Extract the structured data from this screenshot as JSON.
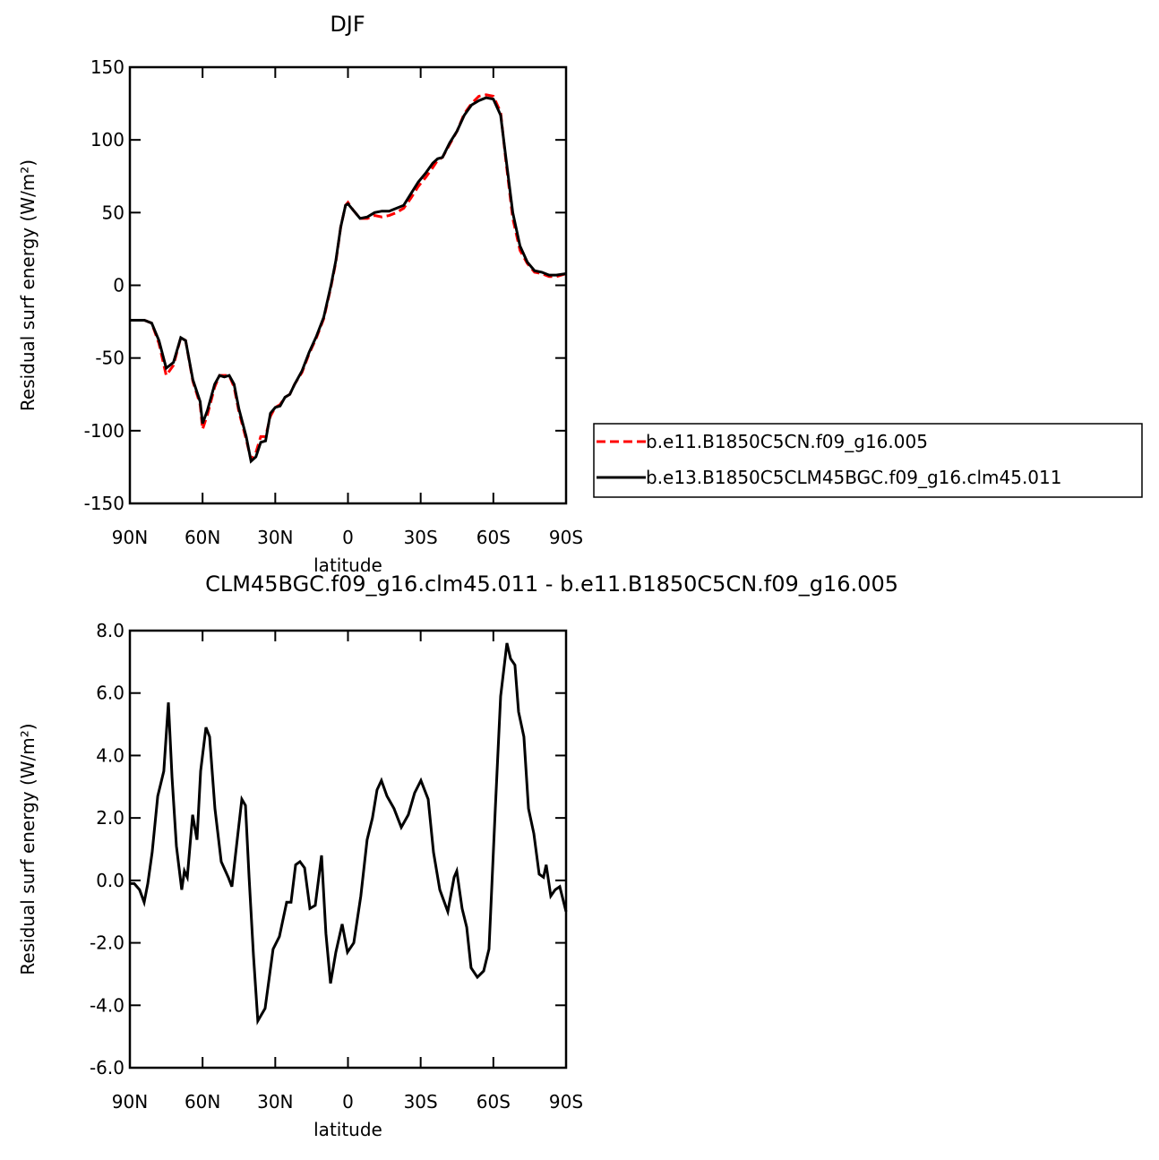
{
  "chart_data": [
    {
      "type": "line",
      "title": "DJF",
      "xlabel": "latitude",
      "ylabel": "Residual surf energy (W/m²)",
      "xlim": [
        90,
        -90
      ],
      "ylim": [
        -150,
        150
      ],
      "xticks": [
        {
          "value": 90,
          "label": "90N"
        },
        {
          "value": 60,
          "label": "60N"
        },
        {
          "value": 30,
          "label": "30N"
        },
        0,
        {
          "value": -30,
          "label": "30S"
        },
        {
          "value": -60,
          "label": "60S"
        },
        {
          "value": -90,
          "label": "90S"
        }
      ],
      "yticks": [
        -150,
        -100,
        -50,
        0,
        50,
        100,
        150
      ],
      "legend": "right",
      "x": [
        90,
        87,
        84,
        81,
        78,
        75,
        72,
        69,
        67,
        64,
        61,
        60,
        58,
        55,
        53,
        51,
        49,
        47,
        45,
        42,
        40,
        38,
        36,
        34,
        32,
        30,
        28,
        26,
        24,
        22,
        19,
        16,
        13,
        10,
        7,
        5,
        3,
        1,
        0,
        -2,
        -5,
        -8,
        -11,
        -14,
        -17,
        -20,
        -23,
        -26,
        -29,
        -32,
        -35,
        -37,
        -39,
        -42,
        -45,
        -48,
        -51,
        -54,
        -57,
        -60,
        -63,
        -65,
        -68,
        -71,
        -74,
        -77,
        -80,
        -83,
        -86,
        -90
      ],
      "series": [
        {
          "name": "b.e11.B1850C5CN.f09_g16.005",
          "color": "#ff0000",
          "dash": true,
          "values": [
            -24,
            -24,
            -24,
            -26,
            -40,
            -62,
            -55,
            -36,
            -38,
            -66,
            -82,
            -99,
            -89,
            -70,
            -62,
            -62,
            -62,
            -70,
            -87,
            -106,
            -120,
            -115,
            -104,
            -104,
            -90,
            -84,
            -82,
            -77,
            -75,
            -68,
            -60,
            -47,
            -36,
            -23,
            -1,
            16,
            40,
            55,
            57,
            52,
            46,
            46,
            48,
            47,
            48,
            50,
            53,
            60,
            68,
            74,
            81,
            86,
            88,
            97,
            106,
            118,
            125,
            130,
            131,
            130,
            119,
            88,
            46,
            24,
            15,
            9,
            8,
            6,
            6,
            8
          ]
        },
        {
          "name": "b.e13.B1850C5CLM45BGC.f09_g16.clm45.011",
          "color": "#000000",
          "dash": false,
          "values": [
            -24,
            -24,
            -24,
            -26,
            -38,
            -57,
            -53,
            -36,
            -38,
            -65,
            -80,
            -95,
            -86,
            -68,
            -62,
            -63,
            -62,
            -68,
            -85,
            -104,
            -121,
            -118,
            -108,
            -107,
            -88,
            -84,
            -83,
            -77,
            -75,
            -68,
            -59,
            -46,
            -35,
            -22,
            0,
            17,
            40,
            55,
            56,
            52,
            46,
            47,
            50,
            51,
            51,
            53,
            55,
            63,
            71,
            77,
            84,
            87,
            88,
            98,
            106,
            117,
            124,
            127,
            129,
            128,
            117,
            90,
            50,
            27,
            16,
            10,
            9,
            7,
            7,
            8
          ]
        }
      ]
    },
    {
      "type": "line",
      "title": "CLM45BGC.f09_g16.clm45.011 - b.e11.B1850C5CN.f09_g16.005",
      "xlabel": "latitude",
      "ylabel": "Residual surf energy (W/m²)",
      "xlim": [
        90,
        -90
      ],
      "ylim": [
        -6,
        8
      ],
      "xticks": [
        {
          "value": 90,
          "label": "90N"
        },
        {
          "value": 60,
          "label": "60N"
        },
        {
          "value": 30,
          "label": "30N"
        },
        0,
        {
          "value": -30,
          "label": "30S"
        },
        {
          "value": -60,
          "label": "60S"
        },
        {
          "value": -90,
          "label": "90S"
        }
      ],
      "yticks": [
        {
          "value": -6,
          "label": "-6.0"
        },
        {
          "value": -4,
          "label": "-4.0"
        },
        {
          "value": -2,
          "label": "-2.0"
        },
        {
          "value": 0,
          "label": "0.0"
        },
        {
          "value": 2,
          "label": "2.0"
        },
        {
          "value": 4,
          "label": "4.0"
        },
        {
          "value": 6,
          "label": "6.0"
        },
        {
          "value": 8,
          "label": "8.0"
        }
      ],
      "x": [
        90,
        88.2,
        86,
        84.1,
        82.6,
        80.8,
        78.5,
        76,
        74.1,
        72.6,
        70.8,
        68.6,
        67.5,
        66.3,
        64.1,
        62.3,
        60.8,
        58.6,
        57.1,
        54.9,
        52.3,
        49.4,
        47.9,
        46,
        43.8,
        42.3,
        40.8,
        39,
        37.2,
        34.2,
        30.9,
        28.3,
        25.3,
        23.5,
        21.6,
        19.8,
        17.9,
        15.7,
        13.5,
        10.9,
        9.1,
        7.2,
        5,
        2.4,
        0.2,
        -2.4,
        -5.3,
        -7.9,
        -10.1,
        -12,
        -13.8,
        -16.1,
        -19,
        -22,
        -24.9,
        -27.5,
        -30.1,
        -33.1,
        -35.3,
        -37.9,
        -41.2,
        -43.8,
        -44.9,
        -47.1,
        -49,
        -50.8,
        -53.4,
        -56,
        -58.2,
        -60.8,
        -63,
        -65.6,
        -67.1,
        -68.9,
        -70.4,
        -72.6,
        -74.5,
        -76.7,
        -78.9,
        -80.7,
        -81.8,
        -83.7,
        -85.5,
        -87.4,
        -90
      ],
      "series": [
        {
          "name": "difference",
          "color": "#000000",
          "dash": false,
          "values": [
            -0.1,
            -0.1,
            -0.3,
            -0.7,
            -0.1,
            0.9,
            2.7,
            3.5,
            5.7,
            3.3,
            1.1,
            -0.3,
            0.3,
            0.1,
            2.1,
            1.3,
            3.5,
            4.9,
            4.6,
            2.3,
            0.6,
            0.1,
            -0.2,
            1.1,
            2.6,
            2.4,
            0.1,
            -2.4,
            -4.5,
            -4.1,
            -2.2,
            -1.8,
            -0.7,
            -0.7,
            0.5,
            0.6,
            0.4,
            -0.9,
            -0.8,
            0.8,
            -1.7,
            -3.3,
            -2.3,
            -1.4,
            -2.3,
            -2.0,
            -0.5,
            1.3,
            2.0,
            2.9,
            3.2,
            2.7,
            2.3,
            1.7,
            2.1,
            2.8,
            3.2,
            2.6,
            0.9,
            -0.3,
            -1.0,
            0.1,
            0.3,
            -0.9,
            -1.5,
            -2.8,
            -3.1,
            -2.9,
            -2.2,
            2.3,
            5.9,
            7.6,
            7.1,
            6.9,
            5.4,
            4.6,
            2.3,
            1.5,
            0.2,
            0.1,
            0.5,
            -0.5,
            -0.3,
            -0.2,
            -1.0
          ]
        }
      ]
    }
  ]
}
